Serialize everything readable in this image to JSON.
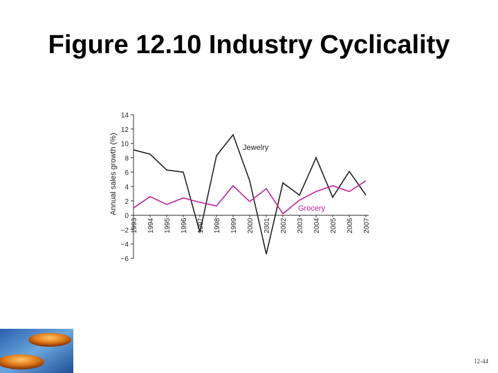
{
  "slide": {
    "title": "Figure 12.10 Industry Cyclicality",
    "page_number": "12-44"
  },
  "colors": {
    "jewelry": "#222222",
    "grocery": "#c0229a",
    "axis": "#333333"
  },
  "chart_data": {
    "type": "line",
    "title": "",
    "xlabel": "",
    "ylabel": "Annual sales growth (%)",
    "x": [
      "1993",
      "1994",
      "1995",
      "1996",
      "1997",
      "1998",
      "1999",
      "2000",
      "2001",
      "2002",
      "2003",
      "2004",
      "2005",
      "2006",
      "2007"
    ],
    "ylim": [
      -6,
      14
    ],
    "yticks": [
      "14",
      "12",
      "10",
      "8",
      "6",
      "4",
      "2",
      "0",
      "−2",
      "−4",
      "−6"
    ],
    "grid": false,
    "series": [
      {
        "name": "Jewelry",
        "values": [
          9.1,
          8.5,
          6.3,
          6.0,
          -2.4,
          8.3,
          11.2,
          4.8,
          -5.4,
          4.5,
          2.8,
          8.0,
          2.5,
          6.1,
          2.8
        ]
      },
      {
        "name": "Grocery",
        "values": [
          1.0,
          2.6,
          1.5,
          2.4,
          1.8,
          1.3,
          4.1,
          1.9,
          3.7,
          0.2,
          2.1,
          3.3,
          4.1,
          3.3,
          4.8
        ]
      }
    ]
  }
}
